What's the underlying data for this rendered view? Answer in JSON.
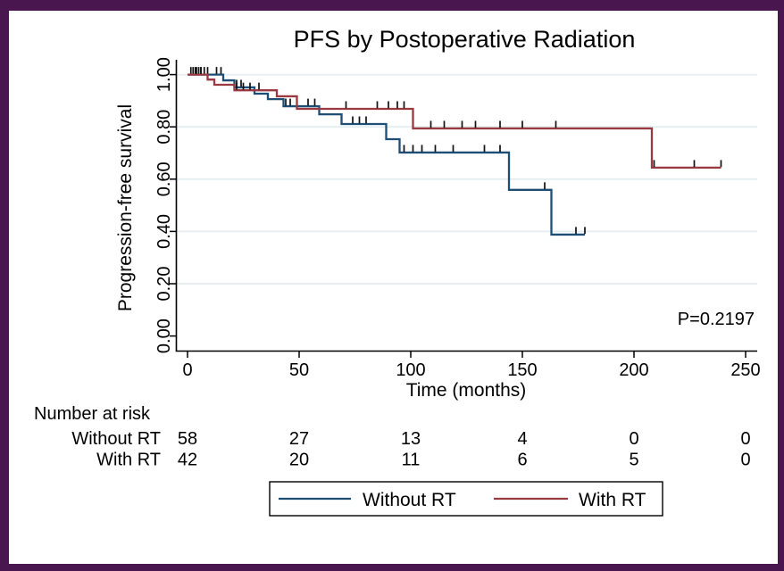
{
  "frame": {
    "border_color": "#4a1650",
    "background": "#ffffff"
  },
  "chart_data": {
    "type": "line",
    "subtype": "kaplan-meier-step",
    "title": "PFS by Postoperative Radiation",
    "title_color": "#1f3864",
    "xlabel": "Time (months)",
    "ylabel": "Progression-free survival",
    "p_value": "P=0.2197",
    "xlim": [
      0,
      250
    ],
    "ylim": [
      0.0,
      1.0
    ],
    "x_ticks": [
      0,
      50,
      100,
      150,
      200,
      250
    ],
    "x_tick_labels": [
      "0",
      "50",
      "100",
      "150",
      "200",
      "250"
    ],
    "y_ticks": [
      0.0,
      0.2,
      0.4,
      0.6,
      0.8,
      1.0
    ],
    "y_tick_labels": [
      "0.00",
      "0.20",
      "0.40",
      "0.60",
      "0.80",
      "1.00"
    ],
    "grid": true,
    "gridline_color": "#e4edf0",
    "axis_color": "#000000",
    "censor_color": "#111111",
    "legend_position": "bottom-center-boxed",
    "series": [
      {
        "name": "Without RT",
        "color": "#1d4f76",
        "steps": [
          [
            0,
            1.0
          ],
          [
            16,
            0.978
          ],
          [
            21,
            0.951
          ],
          [
            30,
            0.927
          ],
          [
            36,
            0.906
          ],
          [
            43,
            0.879
          ],
          [
            59,
            0.848
          ],
          [
            69,
            0.811
          ],
          [
            89,
            0.753
          ],
          [
            95,
            0.702
          ],
          [
            144,
            0.559
          ],
          [
            163,
            0.388
          ]
        ],
        "end_time": 178,
        "censor_times": [
          1.5,
          2.5,
          3.5,
          5,
          6,
          7.5,
          9,
          13,
          15,
          22,
          24,
          44,
          46,
          49,
          54,
          57,
          74,
          77,
          80,
          97,
          101,
          105,
          111,
          119,
          133,
          140,
          160,
          174,
          178
        ]
      },
      {
        "name": "With RT",
        "color": "#9a3a40",
        "steps": [
          [
            0,
            1.0
          ],
          [
            9,
            0.981
          ],
          [
            12,
            0.961
          ],
          [
            21,
            0.94
          ],
          [
            40,
            0.917
          ],
          [
            49,
            0.869
          ],
          [
            101,
            0.794
          ],
          [
            208,
            0.644
          ]
        ],
        "end_time": 239,
        "censor_times": [
          4,
          6,
          22,
          25,
          28,
          32,
          71,
          85,
          90,
          94,
          97,
          109,
          115,
          123,
          129,
          140,
          150,
          165,
          209,
          227,
          239
        ]
      }
    ]
  },
  "risk_table": {
    "header": "Number at risk",
    "times": [
      0,
      50,
      100,
      150,
      200,
      250
    ],
    "rows": [
      {
        "label": "Without RT",
        "counts": [
          "58",
          "27",
          "13",
          "4",
          "0",
          "0"
        ]
      },
      {
        "label": "With RT",
        "counts": [
          "42",
          "20",
          "11",
          "6",
          "5",
          "0"
        ]
      }
    ]
  },
  "legend": {
    "items": [
      {
        "label": "Without RT",
        "color": "#1d4f76"
      },
      {
        "label": "With RT",
        "color": "#9a3a40"
      }
    ]
  }
}
